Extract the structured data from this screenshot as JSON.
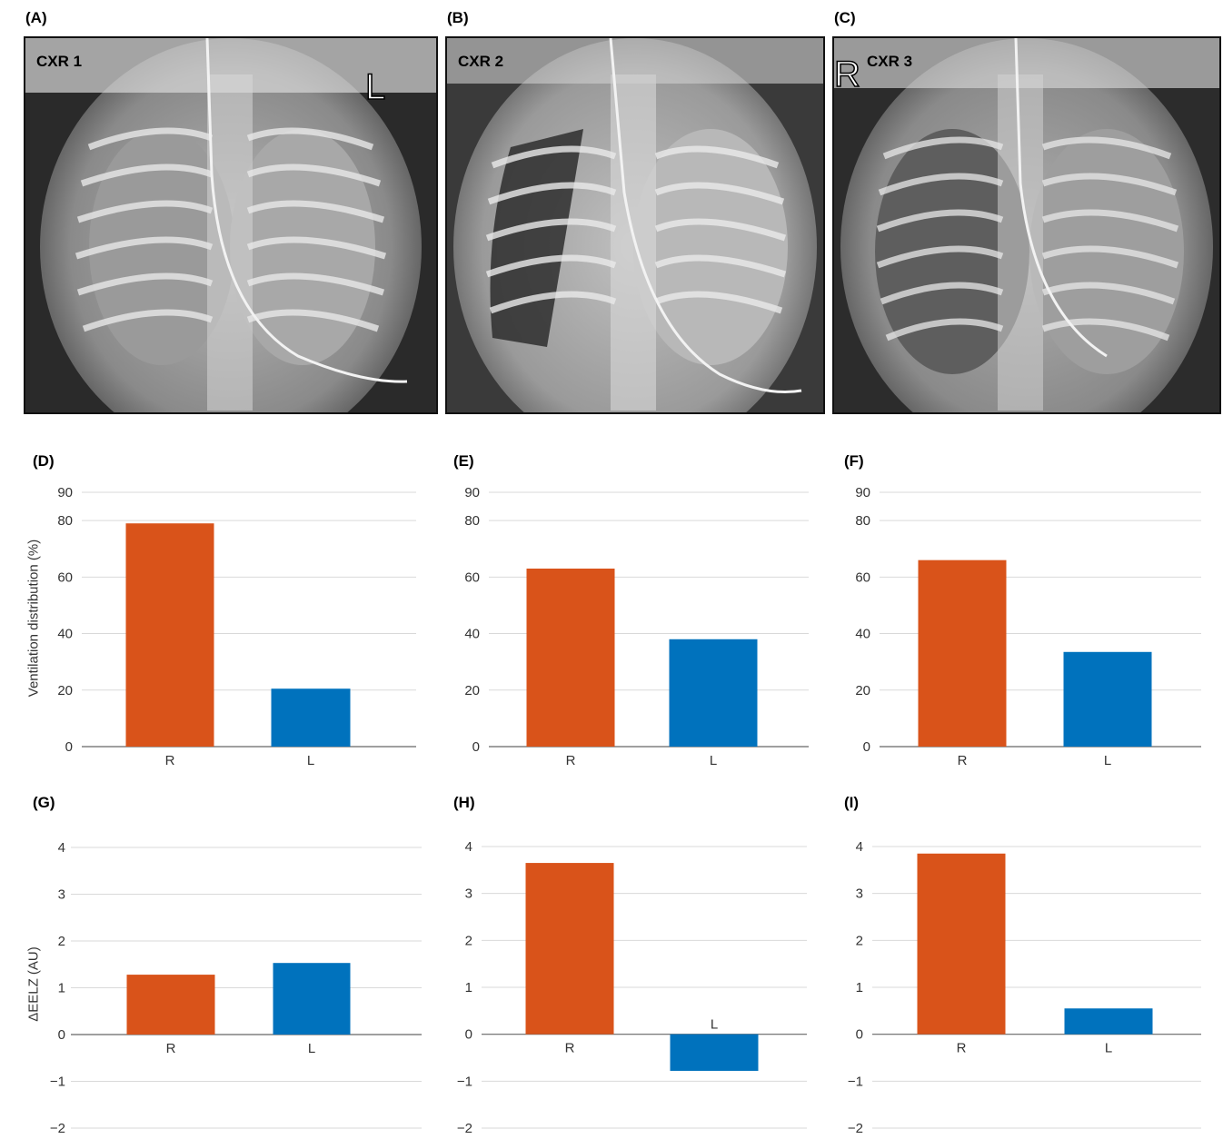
{
  "panels": {
    "A": "(A)",
    "B": "(B)",
    "C": "(C)",
    "D": "(D)",
    "E": "(E)",
    "F": "(F)",
    "G": "(G)",
    "H": "(H)",
    "I": "(I)"
  },
  "xrays": [
    {
      "tag": "CXR 1",
      "side_marker": "L"
    },
    {
      "tag": "CXR 2",
      "side_marker": ""
    },
    {
      "tag": "CXR 3",
      "side_marker": "R"
    }
  ],
  "ylabels": {
    "ventilation": "Ventilation distribution (%)",
    "eelz": "ΔEELZ (AU)"
  },
  "colors": {
    "R": "#d9531a",
    "L": "#0072bd",
    "grid": "#d9d9d9"
  },
  "chart_data": [
    {
      "id": "D",
      "type": "bar",
      "categories": [
        "R",
        "L"
      ],
      "values": [
        79,
        20.5
      ],
      "ylim": [
        0,
        90
      ],
      "yticks": [
        0,
        20,
        40,
        60,
        80,
        90
      ],
      "ylabel": "Ventilation distribution (%)"
    },
    {
      "id": "E",
      "type": "bar",
      "categories": [
        "R",
        "L"
      ],
      "values": [
        63,
        38
      ],
      "ylim": [
        0,
        90
      ],
      "yticks": [
        0,
        20,
        40,
        60,
        80,
        90
      ],
      "ylabel": ""
    },
    {
      "id": "F",
      "type": "bar",
      "categories": [
        "R",
        "L"
      ],
      "values": [
        66,
        33.5
      ],
      "ylim": [
        0,
        90
      ],
      "yticks": [
        0,
        20,
        40,
        60,
        80,
        90
      ],
      "ylabel": ""
    },
    {
      "id": "G",
      "type": "bar",
      "categories": [
        "R",
        "L"
      ],
      "values": [
        1.28,
        1.53
      ],
      "ylim": [
        -2,
        4
      ],
      "yticks": [
        -2,
        -1,
        0,
        1,
        2,
        3,
        4
      ],
      "ylabel": "ΔEELZ (AU)"
    },
    {
      "id": "H",
      "type": "bar",
      "categories": [
        "R",
        "L"
      ],
      "values": [
        3.65,
        -0.78
      ],
      "ylim": [
        -2,
        4
      ],
      "yticks": [
        -2,
        -1,
        0,
        1,
        2,
        3,
        4
      ],
      "ylabel": ""
    },
    {
      "id": "I",
      "type": "bar",
      "categories": [
        "R",
        "L"
      ],
      "values": [
        3.85,
        0.55
      ],
      "ylim": [
        -2,
        4
      ],
      "yticks": [
        -2,
        -1,
        0,
        1,
        2,
        3,
        4
      ],
      "ylabel": ""
    }
  ]
}
